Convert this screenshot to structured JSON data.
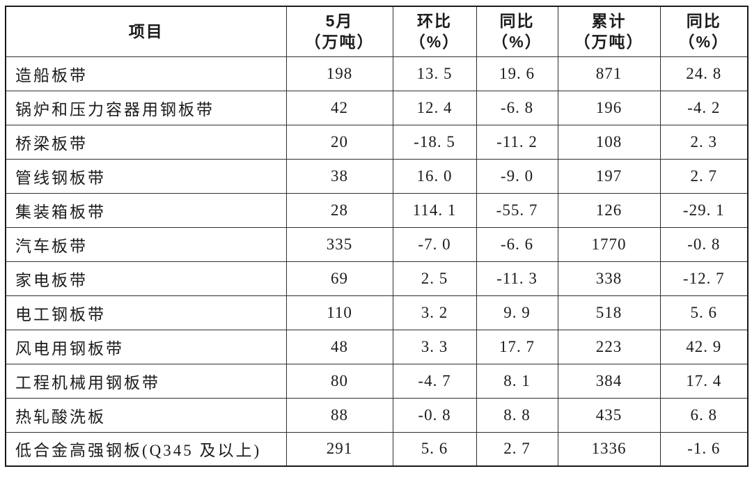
{
  "chart_data": {
    "type": "table",
    "columns": [
      {
        "label": "项目",
        "sub": ""
      },
      {
        "label": "5月",
        "sub": "（万吨）"
      },
      {
        "label": "环比",
        "sub": "（%）"
      },
      {
        "label": "同比",
        "sub": "（%）"
      },
      {
        "label": "累计",
        "sub": "（万吨）"
      },
      {
        "label": "同比",
        "sub": "（%）"
      }
    ],
    "rows": [
      {
        "item": "造船板带",
        "may": "198",
        "mom": "13. 5",
        "yoy": "19. 6",
        "cum": "871",
        "cum_yoy": "24. 8"
      },
      {
        "item": "锅炉和压力容器用钢板带",
        "may": "42",
        "mom": "12. 4",
        "yoy": "-6. 8",
        "cum": "196",
        "cum_yoy": "-4. 2"
      },
      {
        "item": "桥梁板带",
        "may": "20",
        "mom": "-18. 5",
        "yoy": "-11. 2",
        "cum": "108",
        "cum_yoy": "2. 3"
      },
      {
        "item": "管线钢板带",
        "may": "38",
        "mom": "16. 0",
        "yoy": "-9. 0",
        "cum": "197",
        "cum_yoy": "2. 7"
      },
      {
        "item": "集装箱板带",
        "may": "28",
        "mom": "114. 1",
        "yoy": "-55. 7",
        "cum": "126",
        "cum_yoy": "-29. 1"
      },
      {
        "item": "汽车板带",
        "may": "335",
        "mom": "-7. 0",
        "yoy": "-6. 6",
        "cum": "1770",
        "cum_yoy": "-0. 8"
      },
      {
        "item": "家电板带",
        "may": "69",
        "mom": "2. 5",
        "yoy": "-11. 3",
        "cum": "338",
        "cum_yoy": "-12. 7"
      },
      {
        "item": "电工钢板带",
        "may": "110",
        "mom": "3. 2",
        "yoy": "9. 9",
        "cum": "518",
        "cum_yoy": "5. 6"
      },
      {
        "item": "风电用钢板带",
        "may": "48",
        "mom": "3. 3",
        "yoy": "17. 7",
        "cum": "223",
        "cum_yoy": "42. 9"
      },
      {
        "item": "工程机械用钢板带",
        "may": "80",
        "mom": "-4. 7",
        "yoy": "8. 1",
        "cum": "384",
        "cum_yoy": "17. 4"
      },
      {
        "item": "热轧酸洗板",
        "may": "88",
        "mom": "-0. 8",
        "yoy": "8. 8",
        "cum": "435",
        "cum_yoy": "6. 8"
      },
      {
        "item": "低合金高强钢板(Q345 及以上)",
        "may": "291",
        "mom": "5. 6",
        "yoy": "2. 7",
        "cum": "1336",
        "cum_yoy": "-1. 6"
      }
    ]
  },
  "colors": {
    "text": "#1b1b1b",
    "border": "#2e2e2e",
    "background": "#ffffff"
  }
}
